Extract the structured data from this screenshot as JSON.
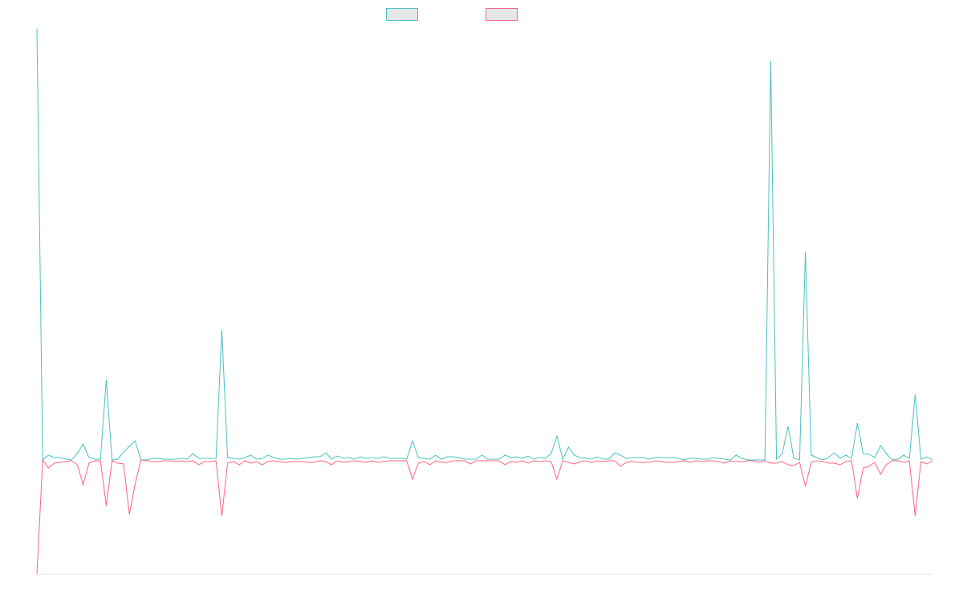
{
  "chart_data": {
    "type": "line",
    "ylim": [
      -142,
      538
    ],
    "series": [
      {
        "color": "#4bc0c0",
        "values": [
          538,
          0,
          6,
          3,
          3,
          1,
          0,
          8,
          20,
          3,
          1,
          1,
          100,
          0,
          1,
          10,
          17,
          24,
          0,
          0,
          2,
          2,
          1,
          1,
          1,
          2,
          1,
          8,
          2,
          2,
          2,
          2,
          162,
          3,
          2,
          1,
          3,
          6,
          1,
          2,
          6,
          3,
          1,
          1,
          2,
          1,
          2,
          3,
          4,
          4,
          9,
          1,
          5,
          2,
          3,
          1,
          4,
          2,
          3,
          2,
          4,
          2,
          2,
          2,
          1,
          24,
          3,
          2,
          1,
          6,
          1,
          4,
          4,
          3,
          1,
          1,
          1,
          6,
          1,
          1,
          1,
          6,
          3,
          4,
          2,
          5,
          1,
          3,
          2,
          8,
          30,
          1,
          16,
          6,
          3,
          2,
          1,
          4,
          1,
          1,
          9,
          6,
          2,
          3,
          3,
          3,
          1,
          3,
          3,
          3,
          3,
          2,
          0,
          2,
          2,
          1,
          1,
          3,
          2,
          1,
          0,
          6,
          2,
          0,
          0,
          0,
          0,
          498,
          1,
          8,
          42,
          2,
          0,
          260,
          6,
          3,
          0,
          3,
          9,
          2,
          6,
          2,
          46,
          8,
          7,
          3,
          18,
          8,
          0,
          1,
          6,
          2,
          82,
          1,
          4,
          0
        ]
      },
      {
        "color": "#ff6384",
        "values": [
          -142,
          0,
          -10,
          -4,
          -3,
          -2,
          -1,
          -6,
          -31,
          -4,
          -1,
          -1,
          -57,
          -1,
          -4,
          -5,
          -68,
          -30,
          0,
          -1,
          -2,
          -2,
          -1,
          -1,
          -2,
          -1,
          -2,
          -1,
          -6,
          -2,
          -2,
          -1,
          -70,
          -4,
          -2,
          -6,
          -1,
          -4,
          -2,
          -6,
          -2,
          -1,
          -2,
          -3,
          -2,
          -2,
          -2,
          -3,
          -3,
          -1,
          -2,
          -6,
          -1,
          -3,
          -2,
          -1,
          -2,
          -3,
          -1,
          -3,
          -2,
          -1,
          -1,
          -1,
          -1,
          -24,
          -4,
          -2,
          -6,
          -1,
          -3,
          -3,
          -1,
          -1,
          -1,
          -5,
          -1,
          -1,
          -1,
          -1,
          -1,
          -6,
          -2,
          -3,
          -1,
          -4,
          -1,
          -2,
          -1,
          -2,
          -24,
          -1,
          -3,
          -5,
          -2,
          -1,
          -3,
          -1,
          -2,
          -1,
          -1,
          -8,
          -3,
          -2,
          -3,
          -3,
          -3,
          -1,
          -2,
          -3,
          -3,
          -2,
          -1,
          -3,
          -1,
          -2,
          -1,
          -1,
          -2,
          -4,
          -1,
          -2,
          -2,
          -1,
          -1,
          -3,
          -1,
          -4,
          -4,
          -2,
          -6,
          -7,
          -3,
          -33,
          -3,
          -1,
          -2,
          -4,
          -4,
          -6,
          -2,
          -1,
          -48,
          -10,
          -8,
          -3,
          -18,
          -6,
          -1,
          -1,
          -3,
          -1,
          -70,
          -2,
          -5,
          -1
        ]
      }
    ]
  }
}
